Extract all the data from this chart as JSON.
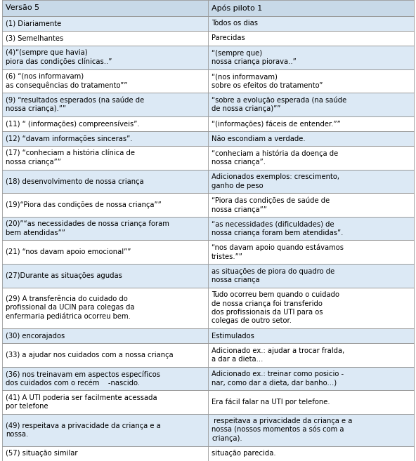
{
  "header": [
    "Versão 5",
    "Após piloto 1"
  ],
  "rows": [
    [
      "(1) Diariamente",
      "Todos os dias"
    ],
    [
      "(3) Semelhantes",
      "Parecidas"
    ],
    [
      "(4)“(sempre que havia)\npiora das condições clínicas..”",
      "“(sempre que)\nnossa criança piorava..”"
    ],
    [
      "(6) “(nos informavam)\nas consequências do tratamento””",
      "“(nos informavam)\nsobre os efeitos do tratamento”"
    ],
    [
      "(9) “resultados esperados (na saúde de\nnossa criança).””",
      "“sobre a evolução esperada (na saúde\nde nossa criança)””"
    ],
    [
      "(11) “ (informações) compreensíveis”.",
      "“(informações) fáceis de entender.””"
    ],
    [
      "(12) “davam informações sinceras”.",
      "Não escondiam a verdade."
    ],
    [
      "(17) “conheciam a história clínica de\nnossa criança””",
      "“conheciam a história da doença de\nnossa criança”."
    ],
    [
      "(18) desenvolvimento de nossa criança",
      "Adicionados exemplos: crescimento,\nganho de peso"
    ],
    [
      "(19)“Piora das condições de nossa criança””",
      "“Piora das condições de saúde de\nnossa criança””"
    ],
    [
      "(20)”“as necessidades de nossa criança foram\nbem atendidas””",
      "“as necessidades (dificuldades) de\nnossa criança foram bem atendidas”."
    ],
    [
      "(21) “nos davam apoio emocional””",
      "“nos davam apoio quando estávamos\ntristes.””"
    ],
    [
      "(27)Durante as situações agudas",
      "as situações de piora do quadro de\nnossa criança"
    ],
    [
      "(29) A transferência do cuidado do\nprofissional da UCIN para colegas da\nenfermaria pediátrica ocorreu bem.",
      "Tudo ocorreu bem quando o cuidado\nde nossa criança foi transferido\ndos profissionais da UTI para os\ncolegas de outro setor."
    ],
    [
      "(30) encorajados",
      "Estimulados"
    ],
    [
      "(33) a ajudar nos cuidados com a nossa criança",
      "Adicionado ex.: ajudar a trocar fralda,\na dar a dieta..."
    ],
    [
      "(36) nos treinavam em aspectos específicos\ndos cuidados com o recém    -nascido.",
      "Adicionado ex.: treinar como posicio -\nnar, como dar a dieta, dar banho...)"
    ],
    [
      "(41) A UTI poderia ser facilmente acessada\npor telefone",
      "Era fácil falar na UTI por telefone."
    ],
    [
      "(49) respeitava a privacidade da criança e a\nnossa.",
      " respeitava a privacidade da criança e a\nnossa (nossos momentos a sós com a\ncriança)."
    ],
    [
      "(57) situação similar",
      "situação parecida."
    ]
  ],
  "header_bg": "#c8d9e8",
  "row_bg_even": "#dce9f5",
  "row_bg_odd": "#ffffff",
  "border_color": "#999999",
  "text_color": "#000000",
  "font_size": 7.2,
  "header_font_size": 8.0,
  "col_split": 0.5
}
